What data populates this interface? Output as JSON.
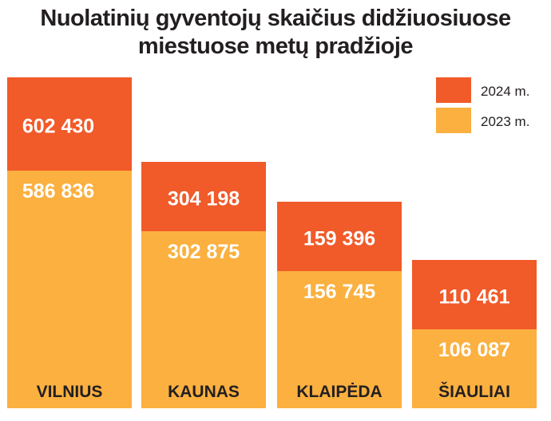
{
  "title_line1": "Nuolatinių gyventojų skaičius didžiuosiuose",
  "title_line2": "miestuose metų pradžioje",
  "colors": {
    "y2024": "#f15a29",
    "y2023": "#fbb040",
    "label_text": "#ffffff",
    "category_text": "#231f20"
  },
  "legend": {
    "y2024": "2024 m.",
    "y2023": "2023 m."
  },
  "chart_data": {
    "type": "bar",
    "categories": [
      "VILNIUS",
      "KAUNAS",
      "KLAIPĖDA",
      "ŠIAULIAI"
    ],
    "series": [
      {
        "name": "2024 m.",
        "values": [
          602430,
          304198,
          159396,
          110461
        ],
        "labels": [
          "602 430",
          "304 198",
          "159 396",
          "110 461"
        ]
      },
      {
        "name": "2023 m.",
        "values": [
          586836,
          302875,
          156745,
          106087
        ],
        "labels": [
          "586 836",
          "302 875",
          "156 745",
          "106 087"
        ]
      }
    ],
    "title": "Nuolatinių gyventojų skaičius didžiuosiuose miestuose metų pradžioje",
    "legend_position": "top-right"
  }
}
